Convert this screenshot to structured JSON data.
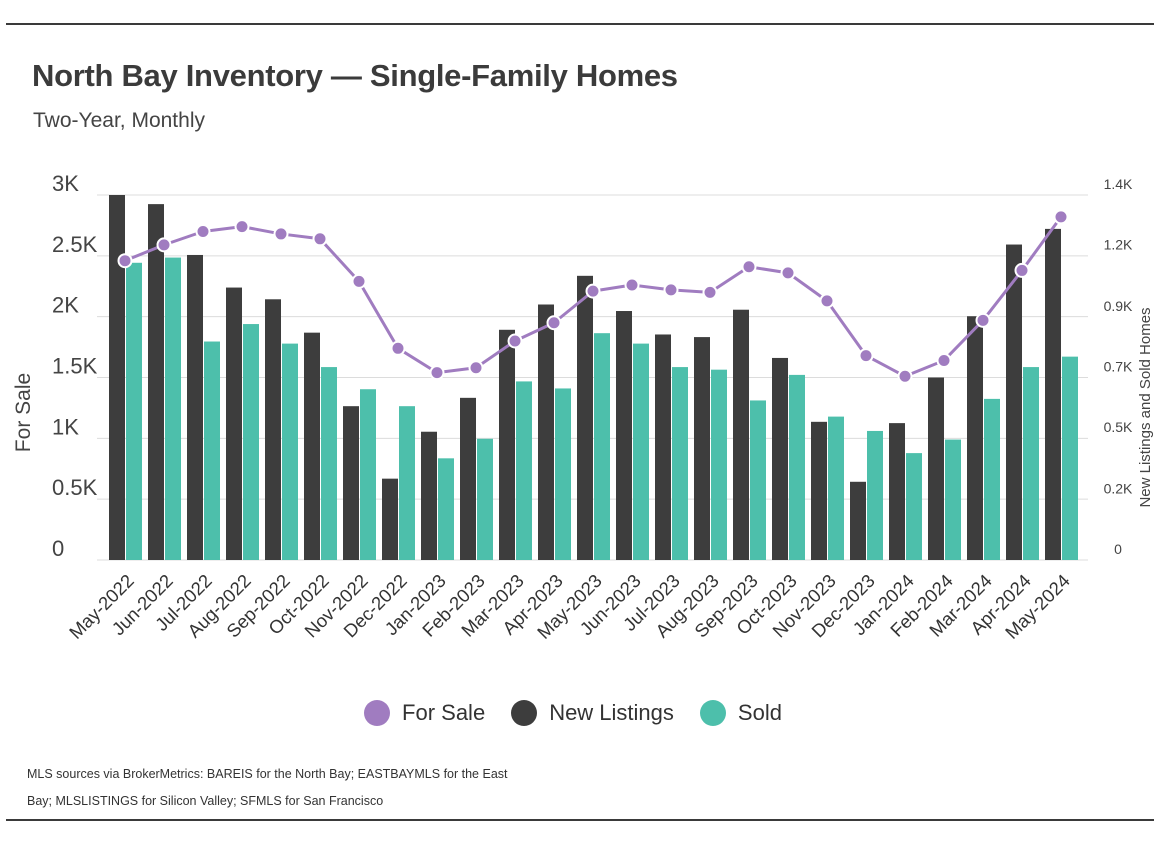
{
  "header": {
    "title": "North Bay Inventory — Single-Family Homes",
    "subtitle": "Two-Year, Monthly"
  },
  "footnote": {
    "line1": "MLS sources via BrokerMetrics: BAREIS for the North Bay; EASTBAYMLS for the East",
    "line2": "Bay; MLSLISTINGS for Silicon Valley; SFMLS for San Francisco"
  },
  "legend": [
    {
      "label": "For Sale",
      "color": "#a07cc0"
    },
    {
      "label": "New Listings",
      "color": "#3d3d3d"
    },
    {
      "label": "Sold",
      "color": "#4dbfab"
    }
  ],
  "chart_data": {
    "type": "bar",
    "categories": [
      "May-2022",
      "Jun-2022",
      "Jul-2022",
      "Aug-2022",
      "Sep-2022",
      "Oct-2022",
      "Nov-2022",
      "Dec-2022",
      "Jan-2023",
      "Feb-2023",
      "Mar-2023",
      "Apr-2023",
      "May-2023",
      "Jun-2023",
      "Jul-2023",
      "Aug-2023",
      "Sep-2023",
      "Oct-2023",
      "Nov-2023",
      "Dec-2023",
      "Jan-2024",
      "Feb-2024",
      "Mar-2024",
      "Apr-2024",
      "May-2024"
    ],
    "y_left": {
      "label": "For Sale",
      "ylim": [
        0,
        3000
      ],
      "ticks": [
        0,
        500,
        1000,
        1500,
        2000,
        2500,
        3000
      ],
      "tick_labels": [
        "0",
        "0.5K",
        "1K",
        "1.5K",
        "2K",
        "2.5K",
        "3K"
      ]
    },
    "y_right": {
      "label": "New Listings and Sold Homes",
      "ylim": [
        0,
        1400
      ],
      "ticks": [
        0,
        233,
        467,
        700,
        933,
        1167,
        1400
      ],
      "tick_labels": [
        "0",
        "0.2K",
        "0.5K",
        "0.7K",
        "0.9K",
        "1.2K",
        "1.4K"
      ]
    },
    "series": [
      {
        "name": "For Sale",
        "type": "line",
        "axis": "left",
        "color": "#a07cc0",
        "values": [
          2460,
          2590,
          2700,
          2740,
          2680,
          2640,
          2290,
          1740,
          1540,
          1580,
          1800,
          1950,
          2210,
          2260,
          2220,
          2200,
          2410,
          2360,
          2130,
          1680,
          1510,
          1640,
          1970,
          2380,
          2820
        ]
      },
      {
        "name": "New Listings",
        "type": "bar",
        "axis": "right",
        "color": "#3d3d3d",
        "values": [
          1400,
          1365,
          1170,
          1045,
          1000,
          872,
          590,
          312,
          492,
          622,
          883,
          980,
          1090,
          955,
          865,
          855,
          960,
          775,
          530,
          300,
          525,
          700,
          935,
          1210,
          1270
        ]
      },
      {
        "name": "Sold",
        "type": "bar",
        "axis": "right",
        "color": "#4dbfab",
        "values": [
          1140,
          1160,
          838,
          905,
          830,
          740,
          655,
          590,
          390,
          465,
          685,
          658,
          870,
          830,
          740,
          730,
          612,
          710,
          550,
          495,
          410,
          462,
          618,
          740,
          780
        ]
      }
    ],
    "grid": true,
    "legend_position": "bottom-center"
  }
}
